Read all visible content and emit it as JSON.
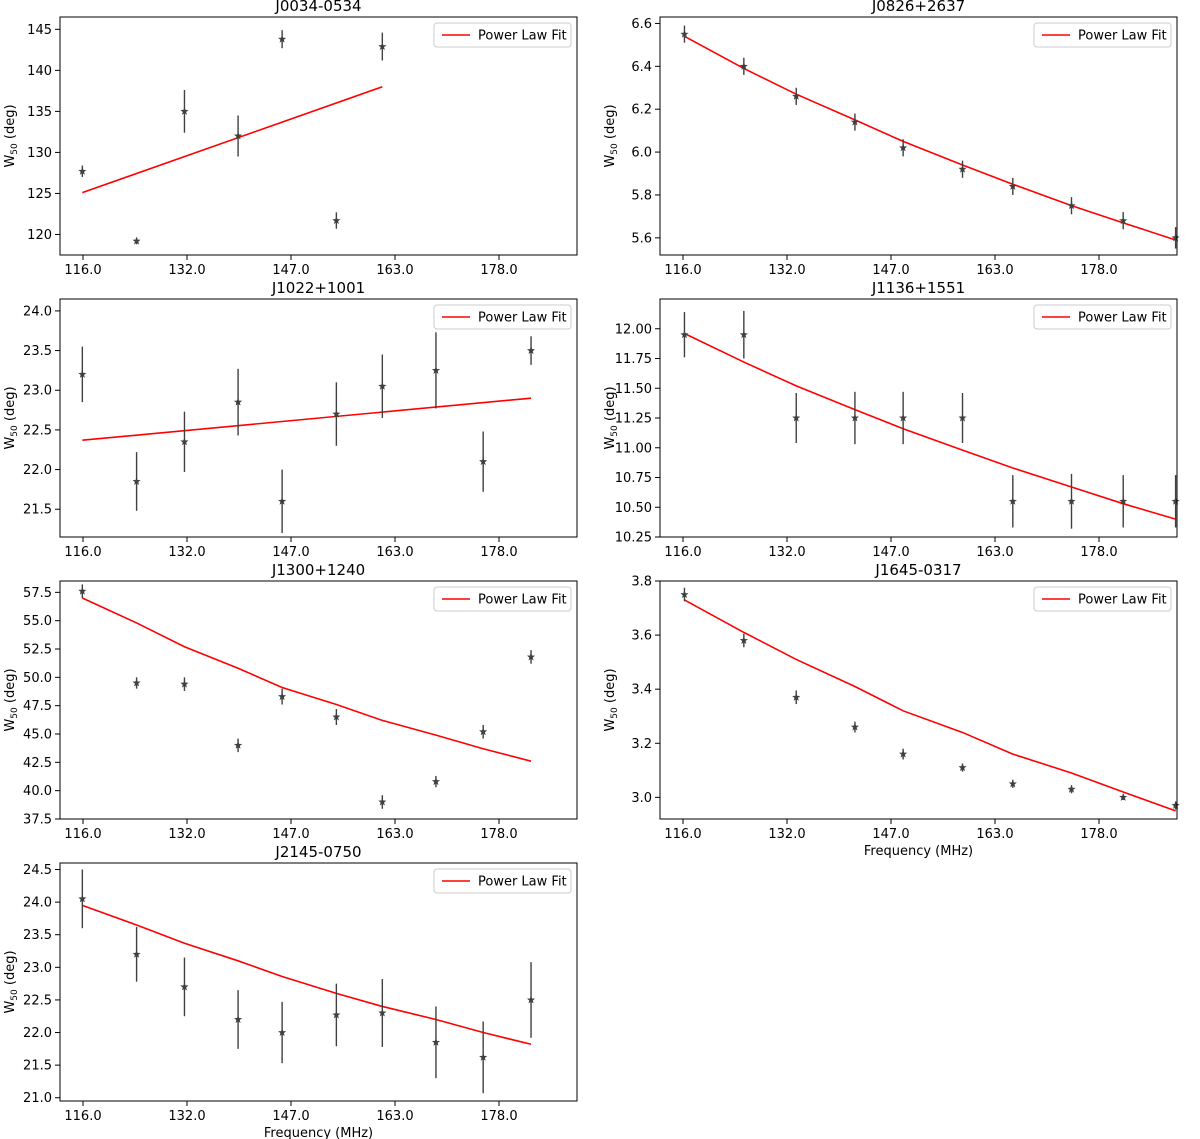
{
  "figure": {
    "legend_label": "Power Law Fit",
    "ylabel_main": "W",
    "ylabel_sub": "50",
    "ylabel_unit": "(deg)",
    "xlabel": "Frequency (MHz)"
  },
  "colors": {
    "fit": "#ff0000",
    "points": "#404040",
    "frame": "#000000"
  },
  "chart_data": [
    {
      "type": "scatter",
      "title": "J0034-0534",
      "xticks": [
        "116.0",
        "132.0",
        "147.0",
        "163.0",
        "178.0"
      ],
      "xlim": [
        112.5,
        193.5
      ],
      "ylim": [
        117.5,
        146.5
      ],
      "yticks": [
        120,
        125,
        130,
        135,
        140,
        145
      ],
      "ytick_labels": [
        "120",
        "125",
        "130",
        "135",
        "140",
        "145"
      ],
      "show_xlabel": false,
      "series": [
        {
          "name": "measured",
          "x": [
            116,
            124.5,
            132,
            140.4,
            147.3,
            155.8,
            163
          ],
          "y": [
            127.7,
            119.2,
            135.0,
            132.0,
            143.8,
            121.7,
            142.9
          ],
          "err": [
            0.7,
            0.4,
            2.6,
            2.5,
            1.1,
            1.0,
            1.7
          ]
        }
      ],
      "fit": {
        "name": "Power Law Fit",
        "x": [
          116,
          163
        ],
        "y": [
          125.1,
          138.0
        ]
      }
    },
    {
      "type": "scatter",
      "title": "J0826+2637",
      "xticks": [
        "116.0",
        "132.0",
        "147.0",
        "163.0",
        "178.0"
      ],
      "xlim": [
        112.5,
        186.5
      ],
      "ylim": [
        5.52,
        6.63
      ],
      "yticks": [
        5.6,
        5.8,
        6.0,
        6.2,
        6.4,
        6.6
      ],
      "ytick_labels": [
        "5.6",
        "5.8",
        "6.0",
        "6.2",
        "6.4",
        "6.6"
      ],
      "show_xlabel": false,
      "series": [
        {
          "name": "measured",
          "x": [
            116,
            124.5,
            132,
            140.4,
            147.3,
            155.8,
            163,
            171.4,
            178.8,
            186.3
          ],
          "y": [
            6.55,
            6.4,
            6.26,
            6.14,
            6.02,
            5.92,
            5.84,
            5.75,
            5.68,
            5.6
          ],
          "err": [
            0.04,
            0.04,
            0.04,
            0.04,
            0.04,
            0.04,
            0.04,
            0.04,
            0.04,
            0.05
          ]
        }
      ],
      "fit": {
        "name": "Power Law Fit",
        "x": [
          116,
          124.5,
          132,
          140.4,
          147.3,
          155.8,
          163,
          171.4,
          178.8,
          186.3
        ],
        "y": [
          6.54,
          6.39,
          6.27,
          6.15,
          6.05,
          5.94,
          5.85,
          5.75,
          5.67,
          5.59
        ]
      }
    },
    {
      "type": "scatter",
      "title": "J1022+1001",
      "xticks": [
        "116.0",
        "132.0",
        "147.0",
        "163.0",
        "178.0"
      ],
      "xlim": [
        112.5,
        193.5
      ],
      "ylim": [
        21.15,
        24.15
      ],
      "yticks": [
        21.5,
        22.0,
        22.5,
        23.0,
        23.5,
        24.0
      ],
      "ytick_labels": [
        "21.5",
        "22.0",
        "22.5",
        "23.0",
        "23.5",
        "24.0"
      ],
      "show_xlabel": false,
      "series": [
        {
          "name": "measured",
          "x": [
            116,
            124.5,
            132,
            140.4,
            147.3,
            155.8,
            163,
            171.4,
            178.8,
            186.3
          ],
          "y": [
            23.2,
            21.85,
            22.35,
            22.85,
            21.6,
            22.7,
            23.05,
            23.25,
            22.1,
            23.5
          ],
          "err": [
            0.35,
            0.37,
            0.38,
            0.42,
            0.4,
            0.4,
            0.4,
            0.48,
            0.38,
            0.18
          ]
        }
      ],
      "fit": {
        "name": "Power Law Fit",
        "x": [
          116,
          186.3
        ],
        "y": [
          22.37,
          22.9
        ]
      }
    },
    {
      "type": "scatter",
      "title": "J1136+1551",
      "xticks": [
        "116.0",
        "132.0",
        "147.0",
        "163.0",
        "178.0"
      ],
      "xlim": [
        112.5,
        186.5
      ],
      "ylim": [
        10.25,
        12.25
      ],
      "yticks": [
        10.25,
        10.5,
        10.75,
        11.0,
        11.25,
        11.5,
        11.75,
        12.0
      ],
      "ytick_labels": [
        "10.25",
        "10.50",
        "10.75",
        "11.00",
        "11.25",
        "11.50",
        "11.75",
        "12.00"
      ],
      "show_xlabel": false,
      "series": [
        {
          "name": "measured",
          "x": [
            116,
            124.5,
            132,
            140.4,
            147.3,
            155.8,
            163,
            171.4,
            178.8,
            186.3
          ],
          "y": [
            11.95,
            11.95,
            11.25,
            11.25,
            11.25,
            11.25,
            10.55,
            10.55,
            10.55,
            10.55
          ],
          "err": [
            0.19,
            0.2,
            0.21,
            0.22,
            0.22,
            0.21,
            0.22,
            0.23,
            0.22,
            0.22
          ]
        }
      ],
      "fit": {
        "name": "Power Law Fit",
        "x": [
          116,
          124.5,
          132,
          140.4,
          147.3,
          155.8,
          163,
          171.4,
          178.8,
          186.3
        ],
        "y": [
          11.96,
          11.72,
          11.52,
          11.32,
          11.16,
          10.98,
          10.83,
          10.67,
          10.53,
          10.4
        ]
      }
    },
    {
      "type": "scatter",
      "title": "J1300+1240",
      "xticks": [
        "116.0",
        "132.0",
        "147.0",
        "163.0",
        "178.0"
      ],
      "xlim": [
        112.5,
        193.5
      ],
      "ylim": [
        37.5,
        58.5
      ],
      "yticks": [
        37.5,
        40.0,
        42.5,
        45.0,
        47.5,
        50.0,
        52.5,
        55.0,
        57.5
      ],
      "ytick_labels": [
        "37.5",
        "40.0",
        "42.5",
        "45.0",
        "47.5",
        "50.0",
        "52.5",
        "55.0",
        "57.5"
      ],
      "show_xlabel": false,
      "series": [
        {
          "name": "measured",
          "x": [
            116,
            124.5,
            132,
            140.4,
            147.3,
            155.8,
            163,
            171.4,
            178.8,
            186.3
          ],
          "y": [
            57.6,
            49.5,
            49.4,
            44.0,
            48.3,
            46.5,
            39.0,
            40.8,
            45.2,
            51.8
          ],
          "err": [
            0.6,
            0.5,
            0.6,
            0.6,
            0.7,
            0.7,
            0.6,
            0.5,
            0.6,
            0.6
          ]
        }
      ],
      "fit": {
        "name": "Power Law Fit",
        "x": [
          116,
          124.5,
          132,
          140.4,
          147.3,
          155.8,
          163,
          171.4,
          178.8,
          186.3
        ],
        "y": [
          57.0,
          54.8,
          52.7,
          50.8,
          49.1,
          47.6,
          46.2,
          44.9,
          43.7,
          42.6
        ]
      }
    },
    {
      "type": "scatter",
      "title": "J1645-0317",
      "xticks": [
        "116.0",
        "132.0",
        "147.0",
        "163.0",
        "178.0"
      ],
      "xlim": [
        112.5,
        186.5
      ],
      "ylim": [
        2.92,
        3.8
      ],
      "yticks": [
        3.0,
        3.2,
        3.4,
        3.6,
        3.8
      ],
      "ytick_labels": [
        "3.0",
        "3.2",
        "3.4",
        "3.6",
        "3.8"
      ],
      "show_xlabel": true,
      "series": [
        {
          "name": "measured",
          "x": [
            116,
            124.5,
            132,
            140.4,
            147.3,
            155.8,
            163,
            171.4,
            178.8,
            186.3
          ],
          "y": [
            3.75,
            3.58,
            3.37,
            3.26,
            3.16,
            3.11,
            3.05,
            3.03,
            3.0,
            2.97
          ],
          "err": [
            0.025,
            0.025,
            0.025,
            0.02,
            0.02,
            0.015,
            0.015,
            0.015,
            0.01,
            0.015
          ]
        }
      ],
      "fit": {
        "name": "Power Law Fit",
        "x": [
          116,
          124.5,
          132,
          140.4,
          147.3,
          155.8,
          163,
          171.4,
          178.8,
          186.3
        ],
        "y": [
          3.73,
          3.61,
          3.51,
          3.41,
          3.32,
          3.24,
          3.16,
          3.09,
          3.02,
          2.95
        ]
      }
    },
    {
      "type": "scatter",
      "title": "J2145-0750",
      "xticks": [
        "116.0",
        "132.0",
        "147.0",
        "163.0",
        "178.0"
      ],
      "xlim": [
        112.5,
        193.5
      ],
      "ylim": [
        20.95,
        24.6
      ],
      "yticks": [
        21.0,
        21.5,
        22.0,
        22.5,
        23.0,
        23.5,
        24.0,
        24.5
      ],
      "ytick_labels": [
        "21.0",
        "21.5",
        "22.0",
        "22.5",
        "23.0",
        "23.5",
        "24.0",
        "24.5"
      ],
      "show_xlabel": true,
      "series": [
        {
          "name": "measured",
          "x": [
            116,
            124.5,
            132,
            140.4,
            147.3,
            155.8,
            163,
            171.4,
            178.8,
            186.3
          ],
          "y": [
            24.05,
            23.2,
            22.7,
            22.2,
            22.0,
            22.27,
            22.3,
            21.85,
            21.62,
            22.5
          ],
          "err": [
            0.45,
            0.42,
            0.45,
            0.45,
            0.47,
            0.48,
            0.52,
            0.55,
            0.55,
            0.58
          ]
        }
      ],
      "fit": {
        "name": "Power Law Fit",
        "x": [
          116,
          124.5,
          132,
          140.4,
          147.3,
          155.8,
          163,
          171.4,
          178.8,
          186.3
        ],
        "y": [
          23.95,
          23.65,
          23.37,
          23.1,
          22.86,
          22.6,
          22.4,
          22.2,
          22.0,
          21.82
        ]
      }
    }
  ]
}
